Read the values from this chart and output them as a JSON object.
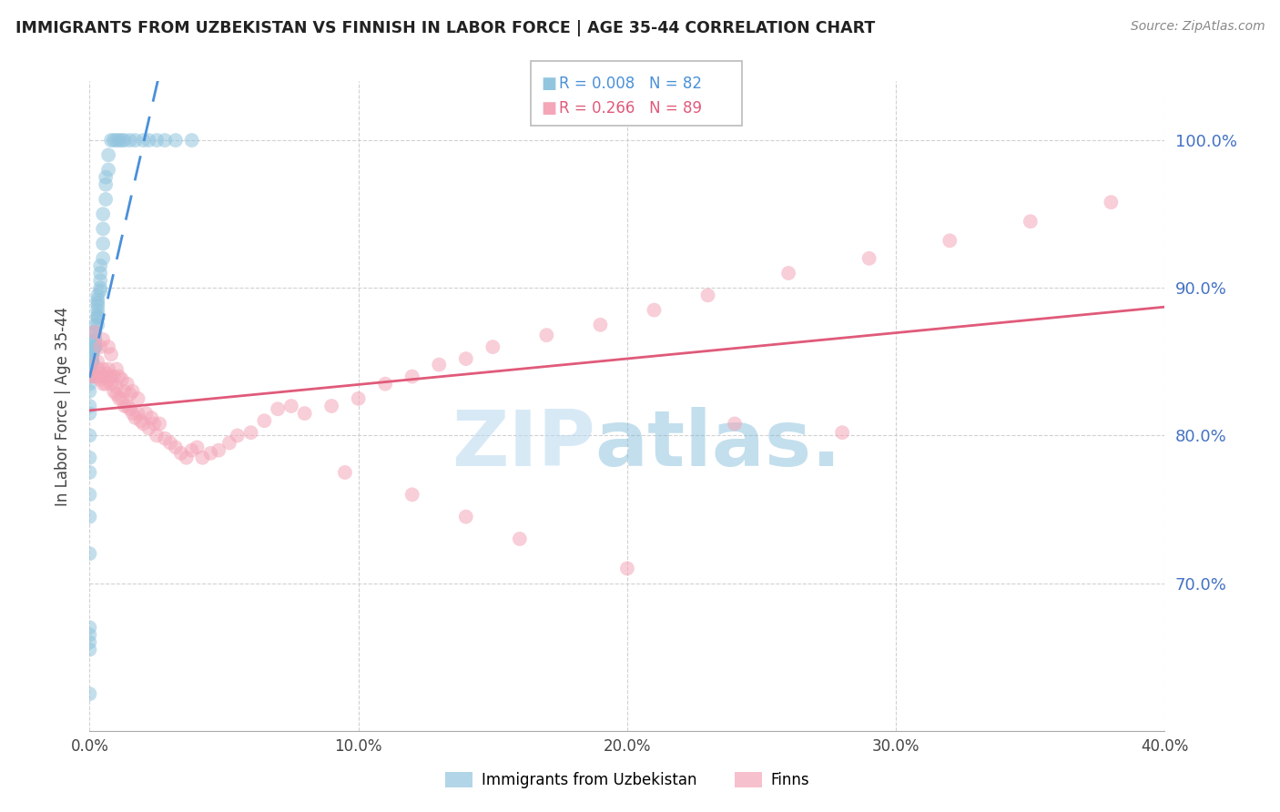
{
  "title": "IMMIGRANTS FROM UZBEKISTAN VS FINNISH IN LABOR FORCE | AGE 35-44 CORRELATION CHART",
  "source_text": "Source: ZipAtlas.com",
  "ylabel": "In Labor Force | Age 35-44",
  "legend_label_1": "Immigrants from Uzbekistan",
  "legend_label_2": "Finns",
  "r1": "R = 0.008",
  "n1": "N = 82",
  "r2": "R = 0.266",
  "n2": "N = 89",
  "blue_color": "#92c5de",
  "pink_color": "#f4a6b8",
  "blue_line_color": "#4a90d9",
  "pink_line_color": "#e05a7a",
  "blue_scatter_x": [
    0.0,
    0.0,
    0.0,
    0.0,
    0.0,
    0.0,
    0.0,
    0.0,
    0.0,
    0.0,
    0.0,
    0.0,
    0.0,
    0.0,
    0.0,
    0.0,
    0.0,
    0.0,
    0.0,
    0.0,
    0.0,
    0.0,
    0.0,
    0.0,
    0.0,
    0.001,
    0.001,
    0.001,
    0.001,
    0.001,
    0.001,
    0.001,
    0.001,
    0.001,
    0.002,
    0.002,
    0.002,
    0.002,
    0.002,
    0.002,
    0.002,
    0.002,
    0.002,
    0.002,
    0.002,
    0.003,
    0.003,
    0.003,
    0.003,
    0.003,
    0.003,
    0.003,
    0.003,
    0.003,
    0.004,
    0.004,
    0.004,
    0.004,
    0.004,
    0.005,
    0.005,
    0.005,
    0.005,
    0.006,
    0.006,
    0.006,
    0.007,
    0.007,
    0.008,
    0.009,
    0.01,
    0.011,
    0.012,
    0.013,
    0.015,
    0.017,
    0.02,
    0.022,
    0.025,
    0.028,
    0.032,
    0.038
  ],
  "blue_scatter_y": [
    0.625,
    0.655,
    0.66,
    0.665,
    0.67,
    0.72,
    0.745,
    0.76,
    0.775,
    0.785,
    0.8,
    0.815,
    0.82,
    0.83,
    0.835,
    0.84,
    0.84,
    0.845,
    0.845,
    0.845,
    0.845,
    0.845,
    0.845,
    0.85,
    0.85,
    0.85,
    0.85,
    0.85,
    0.85,
    0.855,
    0.855,
    0.855,
    0.855,
    0.858,
    0.86,
    0.86,
    0.86,
    0.86,
    0.86,
    0.862,
    0.865,
    0.865,
    0.87,
    0.87,
    0.875,
    0.875,
    0.88,
    0.88,
    0.882,
    0.885,
    0.888,
    0.89,
    0.892,
    0.895,
    0.898,
    0.9,
    0.905,
    0.91,
    0.915,
    0.92,
    0.93,
    0.94,
    0.95,
    0.96,
    0.97,
    0.975,
    0.98,
    0.99,
    1.0,
    1.0,
    1.0,
    1.0,
    1.0,
    1.0,
    1.0,
    1.0,
    1.0,
    1.0,
    1.0,
    1.0,
    1.0,
    1.0
  ],
  "pink_scatter_x": [
    0.001,
    0.002,
    0.002,
    0.003,
    0.003,
    0.003,
    0.004,
    0.004,
    0.004,
    0.005,
    0.005,
    0.005,
    0.005,
    0.006,
    0.006,
    0.007,
    0.007,
    0.007,
    0.008,
    0.008,
    0.008,
    0.009,
    0.009,
    0.01,
    0.01,
    0.01,
    0.011,
    0.011,
    0.012,
    0.012,
    0.013,
    0.013,
    0.014,
    0.014,
    0.015,
    0.015,
    0.016,
    0.016,
    0.017,
    0.018,
    0.018,
    0.019,
    0.02,
    0.021,
    0.022,
    0.023,
    0.024,
    0.025,
    0.026,
    0.028,
    0.03,
    0.032,
    0.034,
    0.036,
    0.038,
    0.04,
    0.042,
    0.045,
    0.048,
    0.052,
    0.055,
    0.06,
    0.065,
    0.07,
    0.075,
    0.08,
    0.09,
    0.1,
    0.11,
    0.12,
    0.13,
    0.14,
    0.15,
    0.17,
    0.19,
    0.21,
    0.23,
    0.26,
    0.29,
    0.32,
    0.35,
    0.38,
    0.28,
    0.24,
    0.2,
    0.16,
    0.14,
    0.12,
    0.095
  ],
  "pink_scatter_y": [
    0.84,
    0.84,
    0.87,
    0.84,
    0.845,
    0.85,
    0.838,
    0.842,
    0.86,
    0.835,
    0.84,
    0.845,
    0.865,
    0.835,
    0.842,
    0.838,
    0.845,
    0.86,
    0.835,
    0.84,
    0.855,
    0.83,
    0.84,
    0.828,
    0.833,
    0.845,
    0.825,
    0.84,
    0.825,
    0.838,
    0.82,
    0.83,
    0.82,
    0.835,
    0.818,
    0.828,
    0.815,
    0.83,
    0.812,
    0.815,
    0.825,
    0.81,
    0.808,
    0.815,
    0.805,
    0.812,
    0.808,
    0.8,
    0.808,
    0.798,
    0.795,
    0.792,
    0.788,
    0.785,
    0.79,
    0.792,
    0.785,
    0.788,
    0.79,
    0.795,
    0.8,
    0.802,
    0.81,
    0.818,
    0.82,
    0.815,
    0.82,
    0.825,
    0.835,
    0.84,
    0.848,
    0.852,
    0.86,
    0.868,
    0.875,
    0.885,
    0.895,
    0.91,
    0.92,
    0.932,
    0.945,
    0.958,
    0.802,
    0.808,
    0.71,
    0.73,
    0.745,
    0.76,
    0.775
  ],
  "xlim": [
    0.0,
    0.4
  ],
  "ylim": [
    0.6,
    1.04
  ],
  "yticks": [
    0.7,
    0.8,
    0.9,
    1.0
  ],
  "xticks": [
    0.0,
    0.1,
    0.2,
    0.3,
    0.4
  ],
  "watermark_zip": "ZIP",
  "watermark_atlas": "atlas.",
  "background_color": "#ffffff",
  "grid_color": "#cccccc"
}
